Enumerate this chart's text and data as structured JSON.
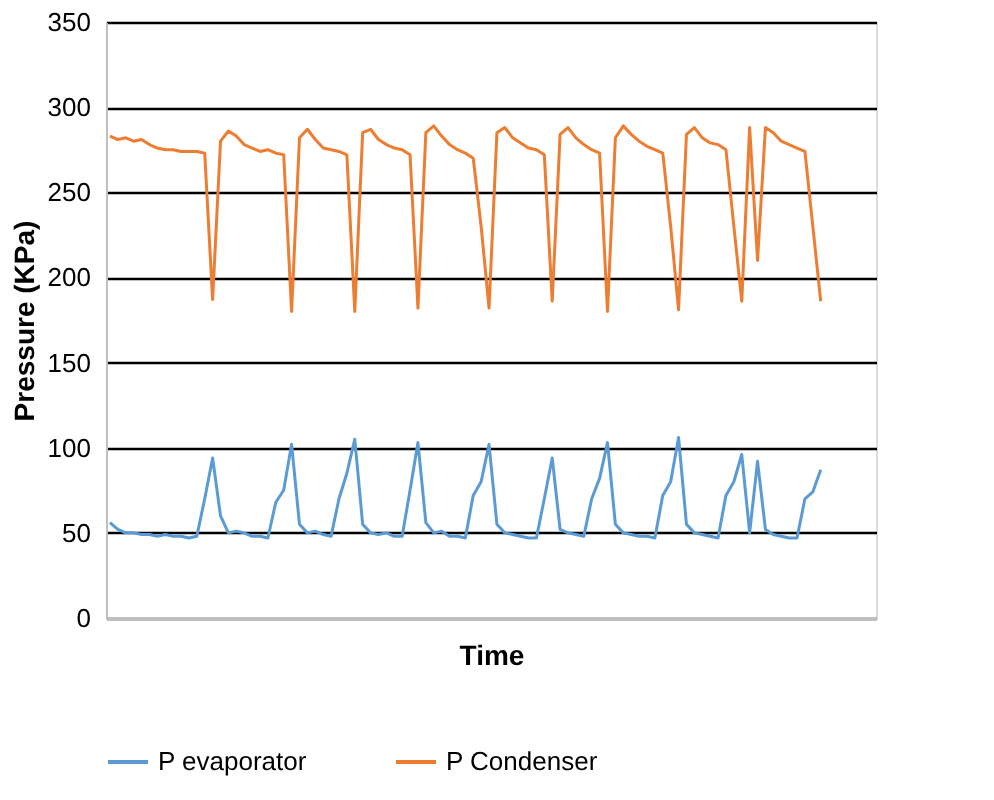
{
  "chart_data": {
    "type": "line",
    "xlabel": "Time",
    "ylabel": "Pressure (KPa)",
    "categories": [
      null,
      null,
      null,
      null,
      null,
      null,
      null,
      null,
      null,
      null,
      null,
      null,
      null,
      null,
      null,
      null,
      null,
      null,
      null,
      null,
      null,
      null,
      null,
      null,
      null,
      null,
      null,
      null,
      null,
      null,
      null,
      null,
      null,
      null,
      null,
      null,
      null,
      null,
      null,
      null,
      null,
      null,
      null,
      null,
      null,
      null,
      null,
      null,
      null,
      null,
      null,
      null,
      null,
      null,
      null,
      null,
      null,
      null,
      null,
      null,
      null,
      null,
      null,
      null,
      null,
      null,
      null,
      null,
      null,
      null,
      null,
      null,
      null,
      null,
      null,
      null,
      null,
      null,
      null,
      null,
      null,
      null,
      null,
      null,
      null,
      null,
      null,
      null,
      null,
      null,
      null
    ],
    "series": [
      {
        "name": "P evaporator",
        "color": "#5b9bd5",
        "values": [
          56,
          52,
          50,
          50,
          49,
          49,
          48,
          49,
          48,
          48,
          47,
          48,
          70,
          94,
          60,
          50,
          51,
          50,
          48,
          48,
          47,
          68,
          75,
          102,
          55,
          50,
          51,
          49,
          48,
          70,
          85,
          105,
          55,
          50,
          49,
          50,
          48,
          48,
          75,
          103,
          56,
          50,
          51,
          48,
          48,
          47,
          72,
          80,
          102,
          55,
          50,
          49,
          48,
          47,
          47,
          70,
          94,
          52,
          50,
          49,
          48,
          70,
          82,
          103,
          55,
          50,
          49,
          48,
          48,
          47,
          72,
          80,
          106,
          55,
          50,
          49,
          48,
          47,
          72,
          80,
          96,
          50,
          92,
          52,
          49,
          48,
          47,
          47,
          70,
          74,
          87
        ]
      },
      {
        "name": "P Condenser",
        "color": "#ed7d31",
        "values": [
          283,
          281,
          282,
          280,
          281,
          278,
          276,
          275,
          275,
          274,
          274,
          274,
          273,
          187,
          280,
          286,
          283,
          278,
          276,
          274,
          275,
          273,
          272,
          180,
          282,
          287,
          281,
          276,
          275,
          274,
          272,
          180,
          285,
          287,
          281,
          278,
          276,
          275,
          272,
          182,
          285,
          289,
          283,
          278,
          275,
          273,
          270,
          230,
          182,
          285,
          288,
          282,
          279,
          276,
          275,
          272,
          186,
          284,
          288,
          282,
          278,
          275,
          273,
          180,
          282,
          289,
          284,
          280,
          277,
          275,
          273,
          230,
          181,
          284,
          288,
          282,
          279,
          278,
          275,
          230,
          186,
          288,
          210,
          288,
          285,
          280,
          278,
          276,
          274,
          230,
          186
        ]
      }
    ],
    "ylim": [
      0,
      350
    ],
    "yticks": [
      0,
      50,
      100,
      150,
      200,
      250,
      300,
      350
    ],
    "grid": "y",
    "legend": "bottom",
    "tick_labels": "y",
    "marker": "none",
    "line_style": "solid"
  }
}
